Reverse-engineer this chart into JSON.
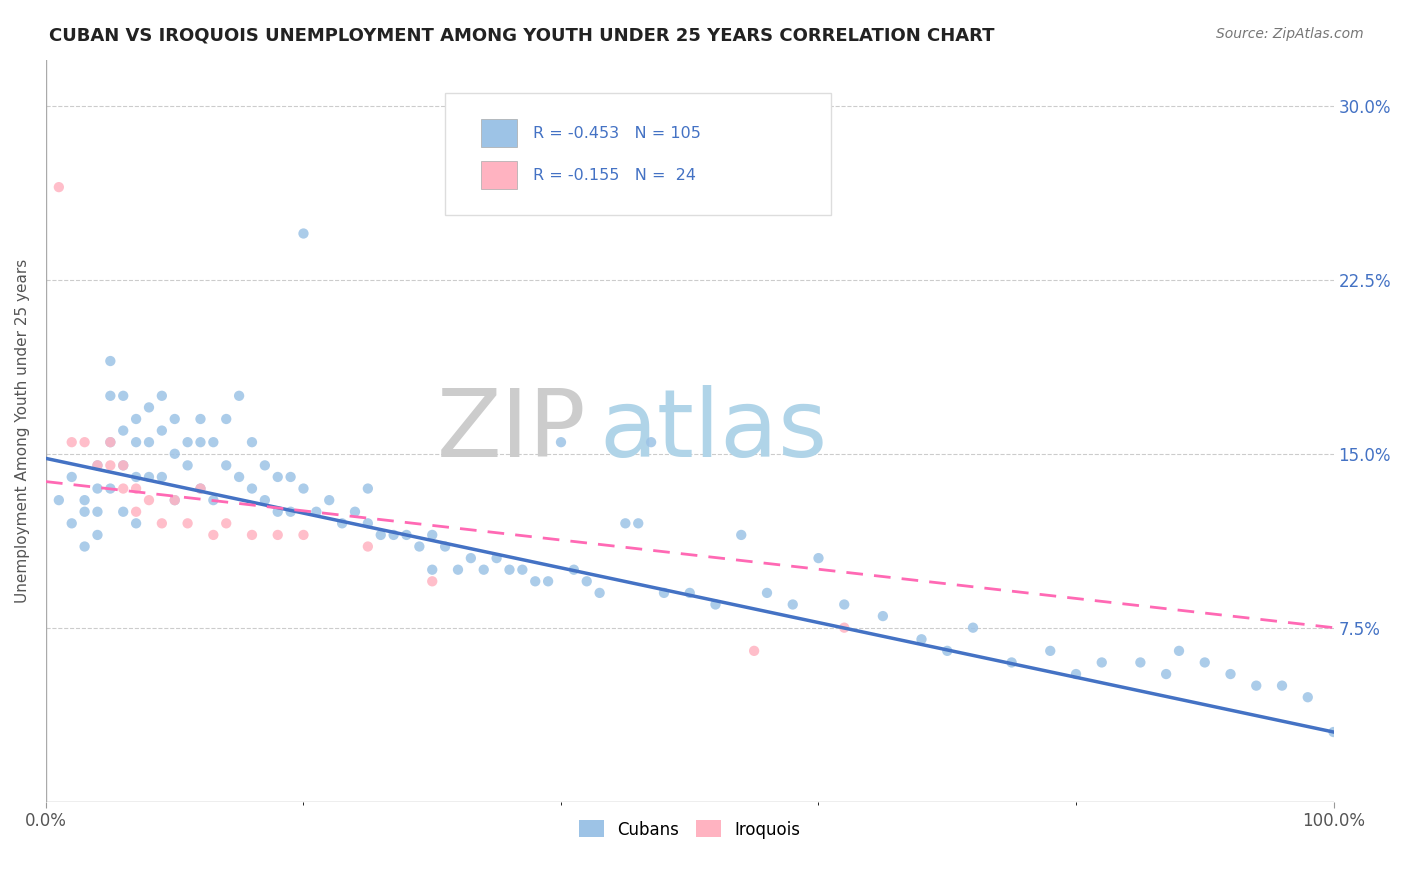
{
  "title": "CUBAN VS IROQUOIS UNEMPLOYMENT AMONG YOUTH UNDER 25 YEARS CORRELATION CHART",
  "source_text": "Source: ZipAtlas.com",
  "ylabel": "Unemployment Among Youth under 25 years",
  "xlim": [
    0.0,
    1.0
  ],
  "ylim": [
    0.0,
    0.32
  ],
  "ytick_labels": [
    "7.5%",
    "15.0%",
    "22.5%",
    "30.0%"
  ],
  "ytick_values": [
    0.075,
    0.15,
    0.225,
    0.3
  ],
  "color_cuban": "#9DC3E6",
  "color_iroquois": "#FFB3C1",
  "color_line_cuban": "#4472C4",
  "color_line_iroquois": "#FF69B4",
  "color_stat": "#4472C4",
  "watermark_zip": "ZIP",
  "watermark_atlas": "atlas",
  "cuban_x": [
    0.01,
    0.02,
    0.02,
    0.03,
    0.03,
    0.03,
    0.04,
    0.04,
    0.04,
    0.04,
    0.05,
    0.05,
    0.05,
    0.05,
    0.06,
    0.06,
    0.06,
    0.06,
    0.07,
    0.07,
    0.07,
    0.07,
    0.08,
    0.08,
    0.08,
    0.09,
    0.09,
    0.09,
    0.1,
    0.1,
    0.1,
    0.11,
    0.11,
    0.12,
    0.12,
    0.12,
    0.13,
    0.13,
    0.14,
    0.14,
    0.15,
    0.15,
    0.16,
    0.16,
    0.17,
    0.17,
    0.18,
    0.18,
    0.19,
    0.19,
    0.2,
    0.2,
    0.21,
    0.22,
    0.23,
    0.24,
    0.25,
    0.25,
    0.26,
    0.27,
    0.28,
    0.29,
    0.3,
    0.3,
    0.31,
    0.32,
    0.33,
    0.34,
    0.35,
    0.36,
    0.37,
    0.38,
    0.39,
    0.4,
    0.41,
    0.42,
    0.43,
    0.45,
    0.46,
    0.47,
    0.48,
    0.5,
    0.52,
    0.54,
    0.56,
    0.58,
    0.6,
    0.62,
    0.65,
    0.68,
    0.7,
    0.72,
    0.75,
    0.78,
    0.8,
    0.82,
    0.85,
    0.87,
    0.88,
    0.9,
    0.92,
    0.94,
    0.96,
    0.98,
    1.0
  ],
  "cuban_y": [
    0.13,
    0.14,
    0.12,
    0.13,
    0.125,
    0.11,
    0.145,
    0.135,
    0.125,
    0.115,
    0.19,
    0.175,
    0.155,
    0.135,
    0.175,
    0.16,
    0.145,
    0.125,
    0.165,
    0.155,
    0.14,
    0.12,
    0.17,
    0.155,
    0.14,
    0.175,
    0.16,
    0.14,
    0.165,
    0.15,
    0.13,
    0.155,
    0.145,
    0.165,
    0.155,
    0.135,
    0.155,
    0.13,
    0.165,
    0.145,
    0.175,
    0.14,
    0.155,
    0.135,
    0.145,
    0.13,
    0.14,
    0.125,
    0.14,
    0.125,
    0.245,
    0.135,
    0.125,
    0.13,
    0.12,
    0.125,
    0.135,
    0.12,
    0.115,
    0.115,
    0.115,
    0.11,
    0.115,
    0.1,
    0.11,
    0.1,
    0.105,
    0.1,
    0.105,
    0.1,
    0.1,
    0.095,
    0.095,
    0.155,
    0.1,
    0.095,
    0.09,
    0.12,
    0.12,
    0.155,
    0.09,
    0.09,
    0.085,
    0.115,
    0.09,
    0.085,
    0.105,
    0.085,
    0.08,
    0.07,
    0.065,
    0.075,
    0.06,
    0.065,
    0.055,
    0.06,
    0.06,
    0.055,
    0.065,
    0.06,
    0.055,
    0.05,
    0.05,
    0.045,
    0.03
  ],
  "iroquois_x": [
    0.01,
    0.02,
    0.03,
    0.04,
    0.05,
    0.05,
    0.06,
    0.06,
    0.07,
    0.07,
    0.08,
    0.09,
    0.1,
    0.11,
    0.12,
    0.13,
    0.14,
    0.16,
    0.18,
    0.2,
    0.25,
    0.3,
    0.55,
    0.62
  ],
  "iroquois_y": [
    0.265,
    0.155,
    0.155,
    0.145,
    0.155,
    0.145,
    0.145,
    0.135,
    0.135,
    0.125,
    0.13,
    0.12,
    0.13,
    0.12,
    0.135,
    0.115,
    0.12,
    0.115,
    0.115,
    0.115,
    0.11,
    0.095,
    0.065,
    0.075
  ],
  "cuban_line_x0": 0.0,
  "cuban_line_y0": 0.148,
  "cuban_line_x1": 1.0,
  "cuban_line_y1": 0.03,
  "iroquois_line_x0": 0.0,
  "iroquois_line_y0": 0.138,
  "iroquois_line_x1": 1.0,
  "iroquois_line_y1": 0.075
}
